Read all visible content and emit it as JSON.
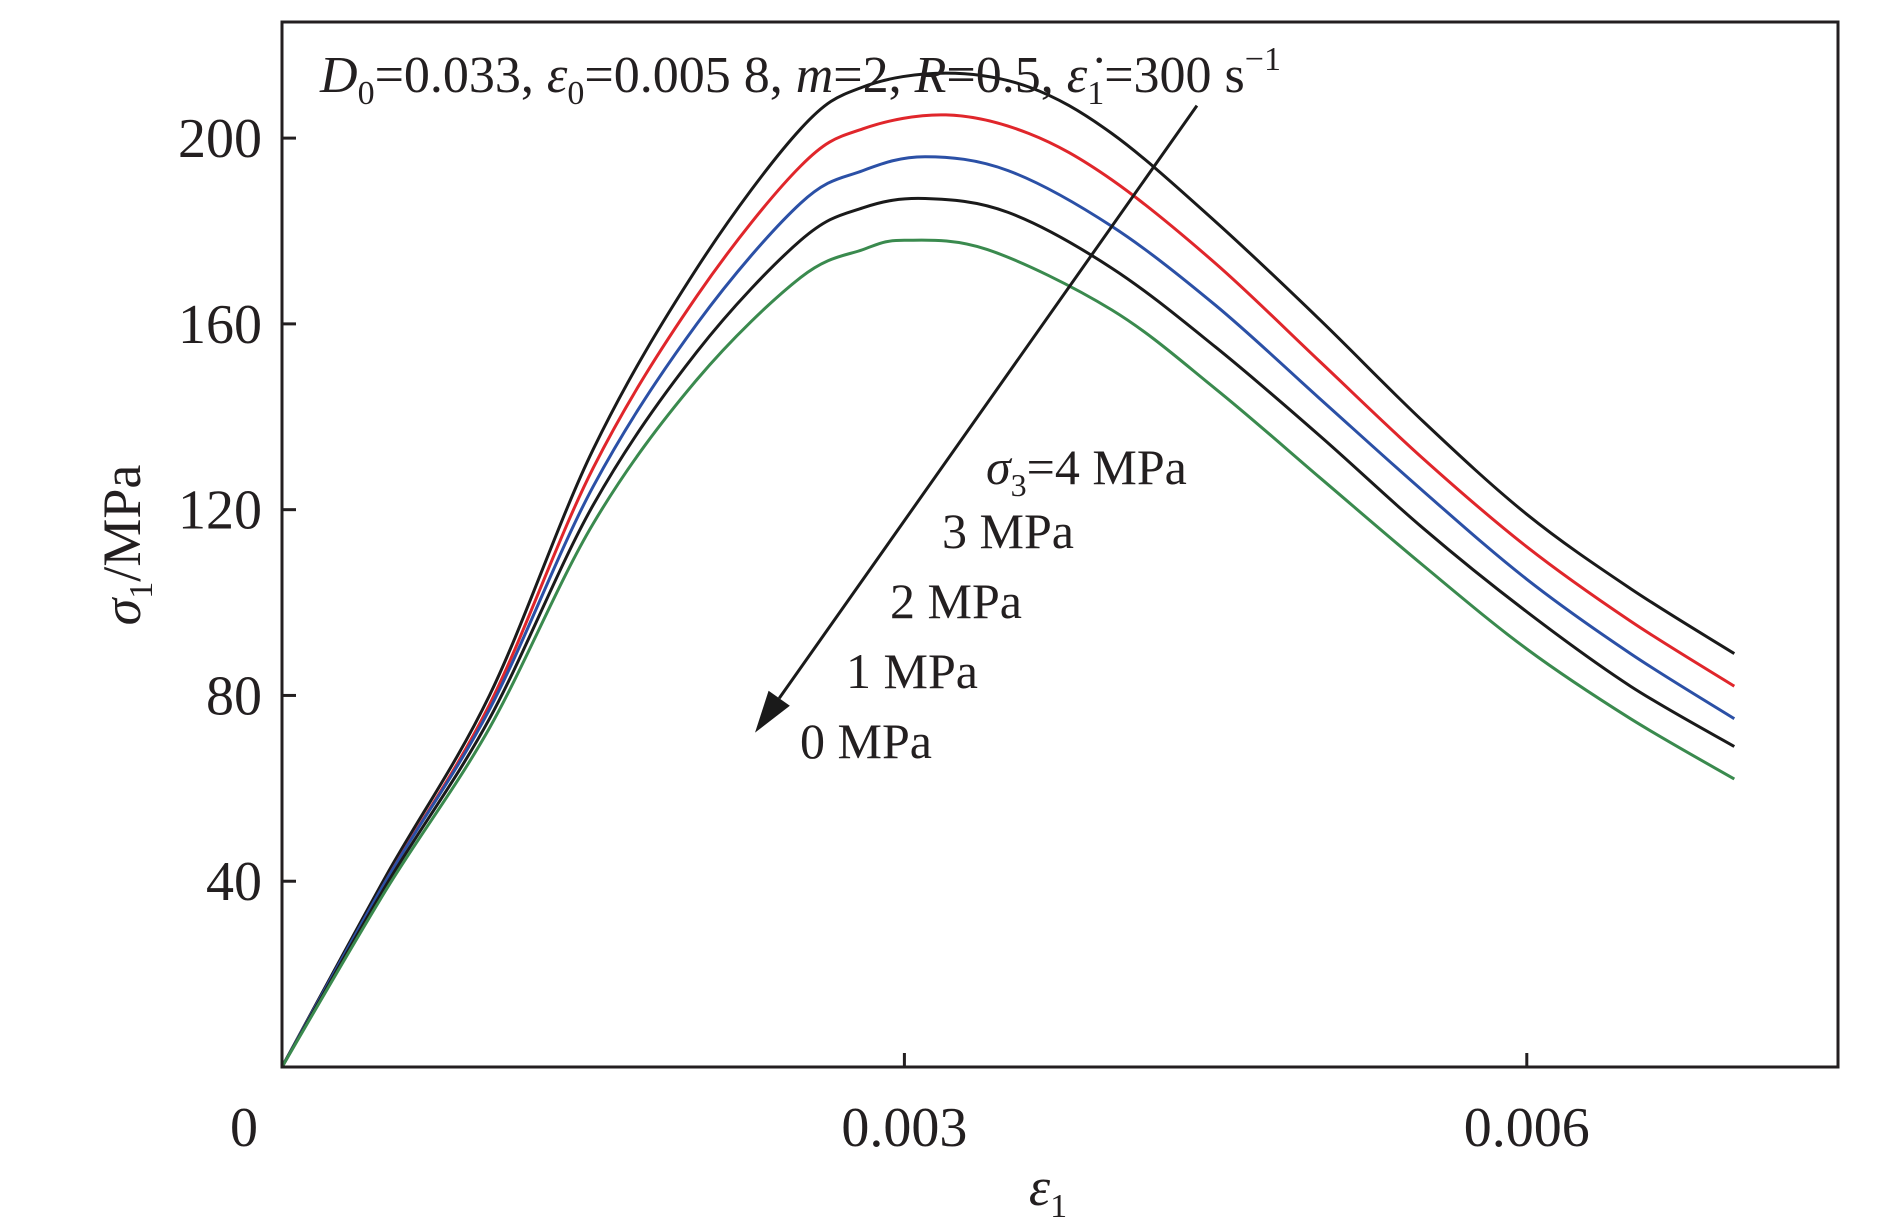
{
  "chart_data": {
    "type": "line",
    "title": "",
    "parameters": {
      "d0": "=0.033, ",
      "eps0": "=0.005 8, ",
      "m": "=2, ",
      "r": "=0.5, ",
      "rate": "=300 s",
      "rate_exp": "−1"
    },
    "xlabel": {
      "symbol": "ε",
      "sub": "1"
    },
    "ylabel": {
      "symbol": "σ",
      "sub": "1",
      "unit": "/MPa"
    },
    "xlim": [
      0,
      0.0075
    ],
    "ylim": [
      0,
      225
    ],
    "origin_label": "0",
    "x_ticks": [
      {
        "value": 0.003,
        "label": "0.003"
      },
      {
        "value": 0.006,
        "label": "0.006"
      }
    ],
    "y_ticks": [
      {
        "value": 40,
        "label": "40"
      },
      {
        "value": 80,
        "label": "80"
      },
      {
        "value": 120,
        "label": "120"
      },
      {
        "value": 160,
        "label": "160"
      },
      {
        "value": 200,
        "label": "200"
      }
    ],
    "grid": false,
    "series": [
      {
        "color": "#1a1a1a",
        "x": [
          0,
          0.0005,
          0.001,
          0.0015,
          0.002,
          0.0025,
          0.0028,
          0.0032,
          0.0036,
          0.004,
          0.0045,
          0.005,
          0.0055,
          0.006,
          0.0065,
          0.007
        ],
        "y": [
          0,
          41,
          80,
          133,
          172,
          202,
          211,
          214,
          211,
          201,
          182,
          161,
          139,
          119,
          103,
          89
        ]
      },
      {
        "color": "#e0262b",
        "x": [
          0,
          0.0005,
          0.001,
          0.0015,
          0.002,
          0.0025,
          0.0028,
          0.0032,
          0.0036,
          0.004,
          0.0045,
          0.005,
          0.0055,
          0.006,
          0.0065,
          0.007
        ],
        "y": [
          0,
          40,
          78,
          129,
          166,
          194,
          202,
          205,
          201,
          191,
          173,
          152,
          131,
          112,
          96,
          82
        ]
      },
      {
        "color": "#2b50a6",
        "x": [
          0,
          0.0005,
          0.001,
          0.0015,
          0.002,
          0.0025,
          0.0028,
          0.0031,
          0.0035,
          0.004,
          0.0045,
          0.005,
          0.0055,
          0.006,
          0.0065,
          0.007
        ],
        "y": [
          0,
          40,
          77,
          125,
          160,
          186,
          193,
          196,
          193,
          181,
          164,
          144,
          124,
          105,
          89,
          75
        ]
      },
      {
        "color": "#1a1a1a",
        "x": [
          0,
          0.0005,
          0.001,
          0.0015,
          0.002,
          0.0025,
          0.0028,
          0.0031,
          0.0035,
          0.004,
          0.0045,
          0.005,
          0.0055,
          0.006,
          0.0065,
          0.007
        ],
        "y": [
          0,
          39,
          75,
          121,
          154,
          178,
          185,
          187,
          184,
          172,
          155,
          136,
          116,
          98,
          82,
          69
        ]
      },
      {
        "color": "#3a8a4e",
        "x": [
          0,
          0.0005,
          0.001,
          0.0015,
          0.002,
          0.0025,
          0.0028,
          0.003,
          0.0034,
          0.004,
          0.0045,
          0.005,
          0.0055,
          0.006,
          0.0065,
          0.007
        ],
        "y": [
          0,
          38,
          73,
          117,
          148,
          170,
          176,
          178,
          176,
          163,
          146,
          127,
          108,
          90,
          75,
          62
        ]
      }
    ],
    "annotations": {
      "sigma3_symbol": "σ",
      "sigma3_sub": "3",
      "levels": [
        "=4 MPa",
        "3 MPa",
        "2 MPa",
        "1 MPa",
        "0 MPa"
      ]
    },
    "arrow": {
      "from": {
        "x": 0.00441,
        "y": 207
      },
      "to": {
        "x": 0.00228,
        "y": 72
      }
    }
  }
}
